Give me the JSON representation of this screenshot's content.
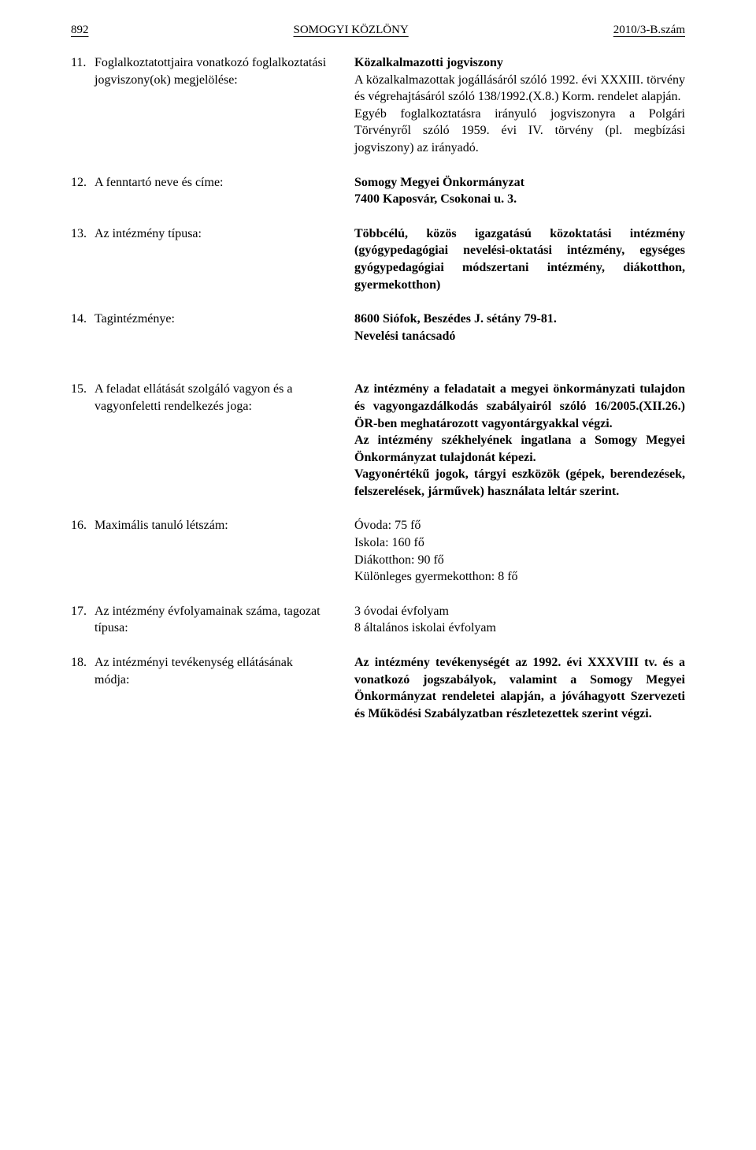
{
  "header": {
    "page_num": "892",
    "title": "SOMOGYI KÖZLÖNY",
    "issue": "2010/3-B.szám"
  },
  "rows": [
    {
      "num": "11.",
      "left": "Foglalkoztatottjaira vonatkozó foglalkoztatási jogviszony(ok) megjelölése:",
      "right_bold": "Közalkalmazotti jogviszony",
      "right": "A közalkalmazottak jogállásáról szóló 1992. évi XXXIII. törvény és végrehajtásáról szóló 138/1992.(X.8.) Korm. rendelet alapján.\nEgyéb foglalkoztatásra irányuló jogviszonyra a Polgári Törvényről szóló 1959. évi IV. törvény (pl. megbízási jogviszony) az irányadó."
    },
    {
      "num": "12.",
      "left": "A fenntartó neve és címe:",
      "right_bold": "Somogy Megyei Önkormányzat\n7400 Kaposvár, Csokonai u. 3."
    },
    {
      "num": "13.",
      "left": "Az intézmény típusa:",
      "right_bold": "Többcélú, közös igazgatású közoktatási intézmény (gyógypedagógiai nevelési-oktatási intézmény, egységes gyógypedagógiai módszertani intézmény, diákotthon, gyermekotthon)"
    },
    {
      "num": "14.",
      "left": "Tagintézménye:",
      "right_bold": "8600 Siófok, Beszédes J. sétány 79-81.\nNevelési tanácsadó"
    },
    {
      "num": "15.",
      "left": "A feladat ellátását szolgáló vagyon és a vagyonfeletti rendelkezés joga:",
      "right_bold": "Az intézmény a feladatait a megyei önkormányzati tulajdon és vagyongazdálkodás szabályairól szóló 16/2005.(XII.26.) ÖR-ben meghatározott vagyontárgyakkal végzi.\nAz intézmény székhelyének ingatlana a Somogy Megyei Önkormányzat tulajdonát képezi.\nVagyonértékű jogok, tárgyi eszközök (gépek, berendezések, felszerelések, járművek) használata leltár szerint."
    },
    {
      "num": "16.",
      "left": "Maximális tanuló létszám:",
      "right": "Óvoda: 75 fő\nIskola: 160 fő\nDiákotthon: 90 fő\nKülönleges gyermekotthon: 8 fő"
    },
    {
      "num": "17.",
      "left": "Az intézmény évfolyamainak száma, tagozat típusa:",
      "right": "3 óvodai évfolyam\n8 általános iskolai évfolyam"
    },
    {
      "num": "18.",
      "left": "Az intézményi tevékenység ellátásának módja:",
      "right_bold": "Az intézmény tevékenységét az 1992. évi XXXVIII tv. és a vonatkozó jogszabályok, valamint a Somogy Megyei Önkormányzat rendeletei alapján, a jóváhagyott Szervezeti és Működési Szabályzatban részletezettek szerint végzi."
    }
  ]
}
